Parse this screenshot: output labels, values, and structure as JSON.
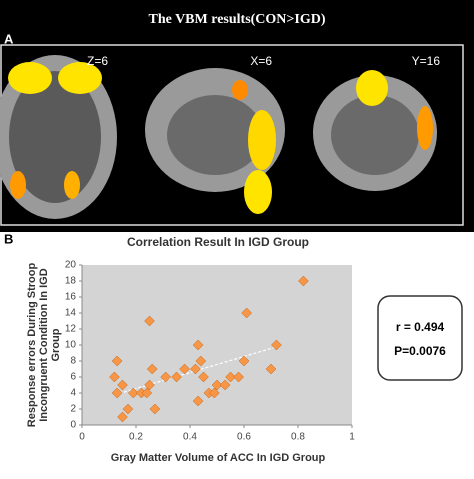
{
  "panel_a": {
    "label": "A",
    "title": "The VBM results(CON>IGD)",
    "views": [
      "Z=6",
      "X=6",
      "Y=16"
    ]
  },
  "chart_data": {
    "type": "scatter",
    "panel_label": "B",
    "title": "Correlation Result In IGD Group",
    "x_label": "Gray Matter Volume of ACC In IGD Group",
    "y_label": [
      "Response errors During Stroop",
      "Incongruent Condition In IGD",
      "Group"
    ],
    "color": "#f79646",
    "x": [
      0.13,
      0.12,
      0.15,
      0.13,
      0.15,
      0.17,
      0.19,
      0.22,
      0.24,
      0.25,
      0.25,
      0.26,
      0.27,
      0.31,
      0.35,
      0.38,
      0.42,
      0.43,
      0.44,
      0.43,
      0.45,
      0.47,
      0.49,
      0.5,
      0.53,
      0.55,
      0.58,
      0.6,
      0.61,
      0.7,
      0.72,
      0.82
    ],
    "y": [
      8,
      6,
      5,
      4,
      1,
      2,
      4,
      4,
      4,
      5,
      13,
      7,
      2,
      6,
      6,
      7,
      7,
      10,
      8,
      3,
      6,
      4,
      4,
      5,
      5,
      6,
      6,
      8,
      14,
      7,
      10,
      18
    ],
    "trendline": true,
    "xlim": [
      0,
      1
    ],
    "xticks": [
      0,
      0.2,
      0.4,
      0.6,
      0.8,
      1
    ],
    "ylim": [
      0,
      20
    ],
    "yticks": [
      0,
      2,
      4,
      6,
      8,
      10,
      12,
      14,
      16,
      18,
      20
    ],
    "stats": [
      "r = 0.494",
      "P=0.0076"
    ]
  }
}
